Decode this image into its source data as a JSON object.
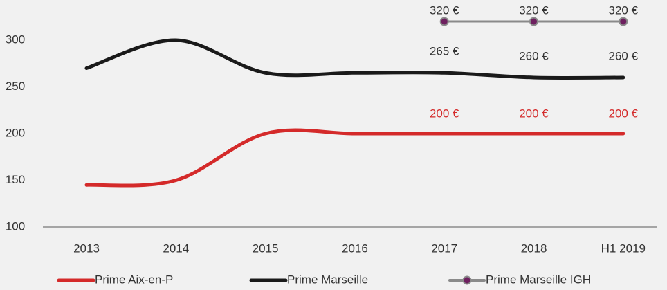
{
  "chart_data": {
    "type": "line",
    "categories": [
      "2013",
      "2014",
      "2015",
      "2016",
      "2017",
      "2018",
      "H1 2019"
    ],
    "series": [
      {
        "name": "Prime Aix-en-P",
        "color": "#d42a2a",
        "values": [
          145,
          150,
          200,
          200,
          200,
          200,
          200
        ],
        "value_labels": [
          null,
          null,
          null,
          null,
          "200 €",
          "200 €",
          "200 €"
        ]
      },
      {
        "name": "Prime Marseille",
        "color": "#1a1a1a",
        "values": [
          270,
          300,
          265,
          265,
          265,
          260,
          260
        ],
        "value_labels": [
          null,
          null,
          null,
          null,
          "265 €",
          "260 €",
          "260 €"
        ]
      },
      {
        "name": "Prime Marseille  IGH",
        "color": "#8a8a8a",
        "marker_color": "#6e1f5f",
        "marker": true,
        "values": [
          null,
          null,
          null,
          null,
          320,
          320,
          320
        ],
        "value_labels": [
          null,
          null,
          null,
          null,
          "320 €",
          "320 €",
          "320 €"
        ]
      }
    ],
    "ylim": [
      100,
      340
    ],
    "yticks": [
      100,
      150,
      200,
      250,
      300
    ],
    "grid": false,
    "legend": "bottom"
  }
}
